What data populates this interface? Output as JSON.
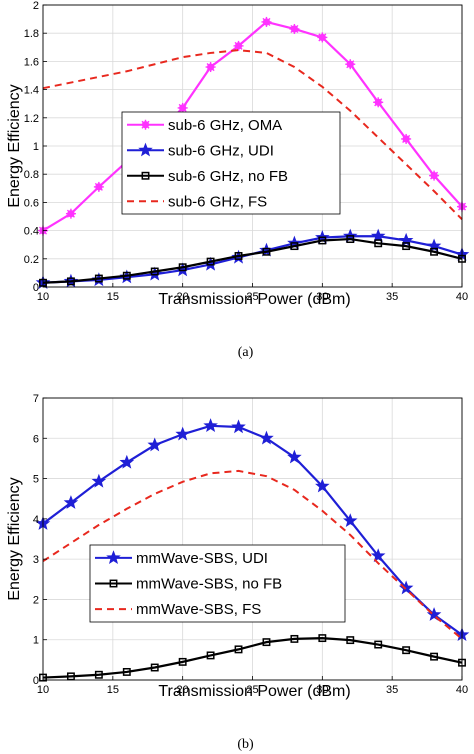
{
  "chart_data": [
    {
      "type": "line",
      "caption": "(a)",
      "xlabel": "Transmission Power (dBm)",
      "ylabel": "Energy Efficiency",
      "xlim": [
        10,
        40
      ],
      "ylim": [
        0,
        2
      ],
      "xticks": [
        10,
        15,
        20,
        25,
        30,
        35,
        40
      ],
      "yticks": [
        0,
        0.2,
        0.4,
        0.6,
        0.8,
        1,
        1.2,
        1.4,
        1.6,
        1.8,
        2
      ],
      "grid": true,
      "legend_position": "center",
      "x": [
        10,
        12,
        14,
        16,
        18,
        20,
        22,
        24,
        26,
        28,
        30,
        32,
        34,
        36,
        38,
        40
      ],
      "series": [
        {
          "name": "sub-6 GHz, OMA",
          "color": "#ff33ff",
          "marker": "asterisk",
          "dash": "solid",
          "values": [
            0.4,
            0.52,
            0.71,
            0.89,
            1.07,
            1.27,
            1.56,
            1.71,
            1.88,
            1.83,
            1.77,
            1.58,
            1.31,
            1.05,
            0.79,
            0.57
          ]
        },
        {
          "name": "sub-6 GHz, UDI",
          "color": "#1f1fd6",
          "marker": "star",
          "dash": "solid",
          "values": [
            0.03,
            0.04,
            0.05,
            0.07,
            0.09,
            0.12,
            0.16,
            0.21,
            0.26,
            0.31,
            0.35,
            0.36,
            0.36,
            0.33,
            0.29,
            0.23
          ]
        },
        {
          "name": "sub-6 GHz, no FB",
          "color": "#000000",
          "marker": "square",
          "dash": "solid",
          "values": [
            0.03,
            0.04,
            0.06,
            0.08,
            0.11,
            0.14,
            0.18,
            0.22,
            0.25,
            0.29,
            0.33,
            0.34,
            0.31,
            0.29,
            0.25,
            0.2
          ]
        },
        {
          "name": "sub-6 GHz, FS",
          "color": "#e8281e",
          "marker": "none",
          "dash": "dashed",
          "values": [
            1.41,
            1.45,
            1.49,
            1.53,
            1.58,
            1.63,
            1.66,
            1.68,
            1.66,
            1.56,
            1.42,
            1.25,
            1.06,
            0.87,
            0.68,
            0.48
          ]
        }
      ]
    },
    {
      "type": "line",
      "caption": "(b)",
      "xlabel": "Transmission Power (dBm)",
      "ylabel": "Energy Efficiency",
      "xlim": [
        10,
        40
      ],
      "ylim": [
        0,
        7
      ],
      "xticks": [
        10,
        15,
        20,
        25,
        30,
        35,
        40
      ],
      "yticks": [
        0,
        1,
        2,
        3,
        4,
        5,
        6,
        7
      ],
      "grid": true,
      "legend_position": "lower-left",
      "x": [
        10,
        12,
        14,
        16,
        18,
        20,
        22,
        24,
        26,
        28,
        30,
        32,
        34,
        36,
        38,
        40
      ],
      "series": [
        {
          "name": "mmWave-SBS, UDI",
          "color": "#1f1fd6",
          "marker": "star",
          "dash": "solid",
          "values": [
            3.88,
            4.4,
            4.93,
            5.4,
            5.83,
            6.1,
            6.31,
            6.28,
            6.0,
            5.53,
            4.81,
            3.95,
            3.08,
            2.28,
            1.62,
            1.12
          ]
        },
        {
          "name": "mmWave-SBS, no FB",
          "color": "#000000",
          "marker": "square",
          "dash": "solid",
          "values": [
            0.06,
            0.09,
            0.13,
            0.2,
            0.31,
            0.45,
            0.61,
            0.76,
            0.94,
            1.02,
            1.04,
            0.99,
            0.88,
            0.74,
            0.58,
            0.43
          ]
        },
        {
          "name": "mmWave-SBS, FS",
          "color": "#e8281e",
          "marker": "none",
          "dash": "dashed",
          "values": [
            2.95,
            3.4,
            3.85,
            4.25,
            4.62,
            4.92,
            5.13,
            5.19,
            5.06,
            4.72,
            4.2,
            3.6,
            2.9,
            2.25,
            1.6,
            1.02
          ]
        }
      ]
    }
  ]
}
